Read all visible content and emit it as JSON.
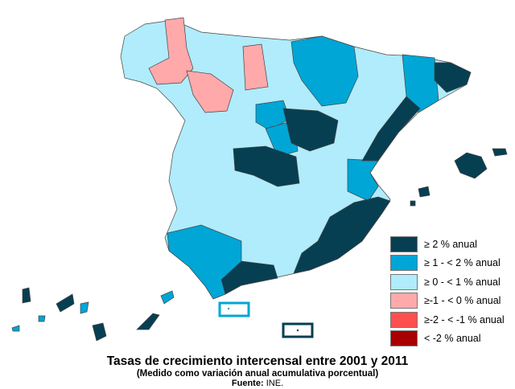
{
  "title": "Tasas de crecimiento intercensal entre 2001 y 2011",
  "subtitle": "(Medido como variación anual acumulativa porcentual)",
  "source": {
    "label": "Fuente:",
    "value": "INE."
  },
  "legend": [
    {
      "label": "≥ 2 % anual",
      "color": "#073f52"
    },
    {
      "label": "≥ 1 - < 2 % anual",
      "color": "#00a6d6"
    },
    {
      "label": "≥ 0 - < 1 % anual",
      "color": "#b0ecfc"
    },
    {
      "label": "≥-1 - < 0 % anual",
      "color": "#ffa9ab"
    },
    {
      "label": "≥-2 - < -1 % anual",
      "color": "#ff5050"
    },
    {
      "label": "< -2 % anual",
      "color": "#a80000"
    }
  ]
}
